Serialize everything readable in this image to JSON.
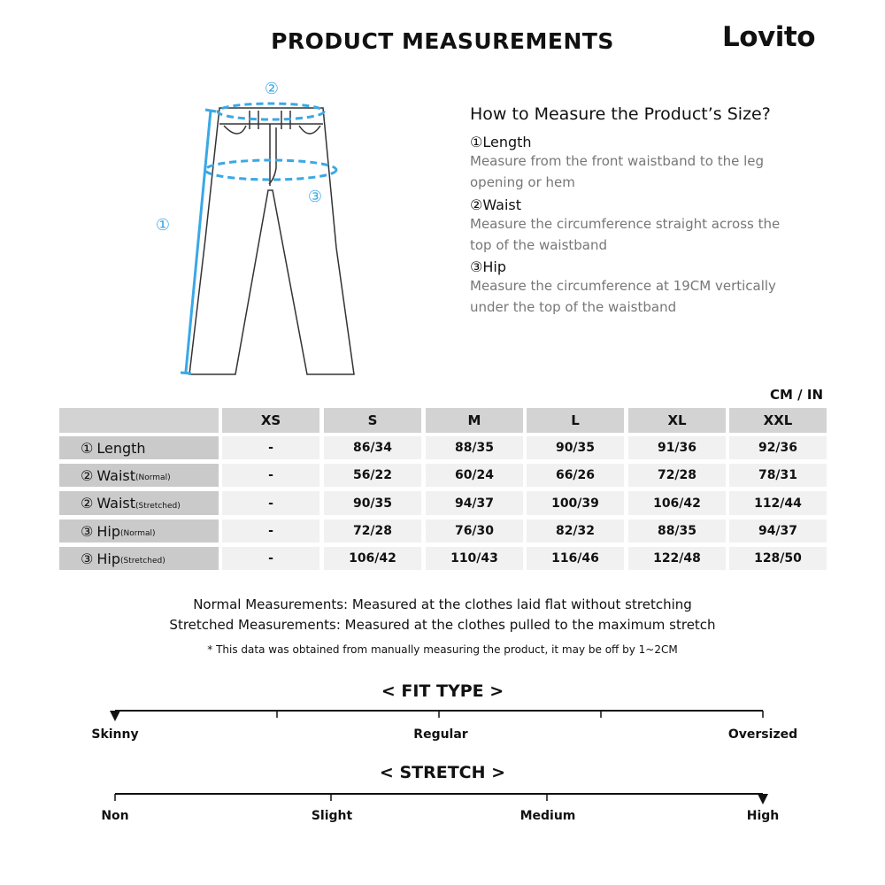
{
  "title": "PRODUCT MEASUREMENTS",
  "brand": "Lovito",
  "diagram": {
    "labels": [
      "①",
      "②",
      "③"
    ],
    "accent": "#3aa8e6"
  },
  "howto": {
    "heading": "How to Measure the Product’s Size?",
    "items": [
      {
        "title": "①Length",
        "desc": "Measure from the front waistband to the leg opening or hem"
      },
      {
        "title": "②Waist",
        "desc": "Measure the circumference straight across the top of the waistband"
      },
      {
        "title": "③Hip",
        "desc": "Measure the circumference at 19CM vertically under the top of the waistband"
      }
    ]
  },
  "unit": "CM / IN",
  "table": {
    "sizes": [
      "XS",
      "S",
      "M",
      "L",
      "XL",
      "XXL"
    ],
    "rows": [
      {
        "num": "①",
        "label": "Length",
        "sub": "",
        "values": [
          "-",
          "86/34",
          "88/35",
          "90/35",
          "91/36",
          "92/36"
        ]
      },
      {
        "num": "②",
        "label": "Waist",
        "sub": "(Normal)",
        "values": [
          "-",
          "56/22",
          "60/24",
          "66/26",
          "72/28",
          "78/31"
        ]
      },
      {
        "num": "②",
        "label": "Waist",
        "sub": "(Stretched)",
        "values": [
          "-",
          "90/35",
          "94/37",
          "100/39",
          "106/42",
          "112/44"
        ]
      },
      {
        "num": "③",
        "label": "Hip",
        "sub": "(Normal)",
        "values": [
          "-",
          "72/28",
          "76/30",
          "82/32",
          "88/35",
          "94/37"
        ]
      },
      {
        "num": "③",
        "label": "Hip",
        "sub": "(Stretched)",
        "values": [
          "-",
          "106/42",
          "110/43",
          "116/46",
          "122/48",
          "128/50"
        ]
      }
    ]
  },
  "notes": [
    "Normal Measurements: Measured at the clothes laid flat without stretching",
    "Stretched  Measurements: Measured at the clothes pulled to the maximum stretch",
    "* This data was obtained from manually measuring the product, it may be off by 1~2CM"
  ],
  "fit": {
    "title": "< FIT TYPE >",
    "labels": [
      "Skinny",
      "Regular",
      "Oversized"
    ],
    "selected": "Skinny"
  },
  "stretch": {
    "title": "< STRETCH >",
    "labels": [
      "Non",
      "Slight",
      "Medium",
      "High"
    ],
    "selected": "High"
  }
}
